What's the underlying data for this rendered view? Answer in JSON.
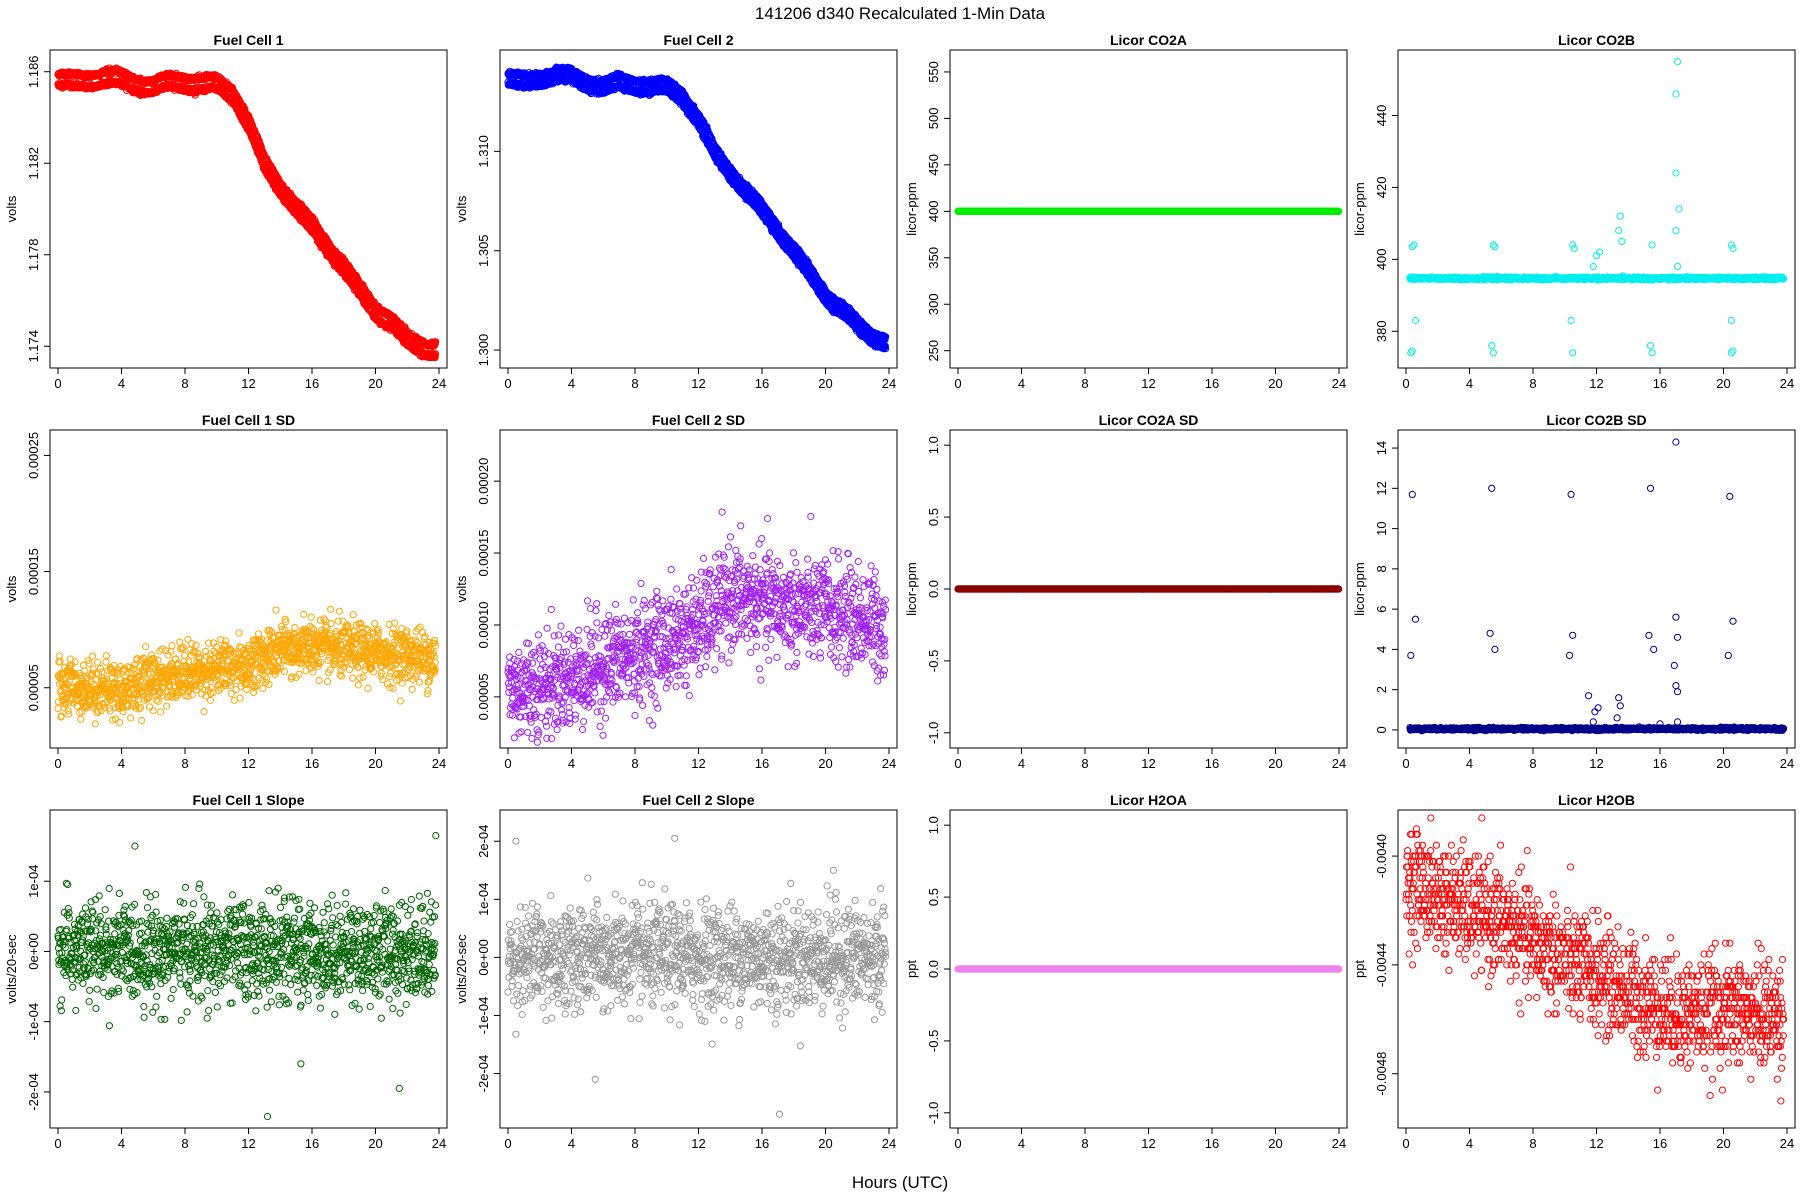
{
  "page": {
    "title": "141206   d340   Recalculated 1-Min Data",
    "xlabel": "Hours (UTC)"
  },
  "chart_data": [
    {
      "id": "fc1",
      "type": "scatter",
      "title": "Fuel Cell 1",
      "ylabel": "volts",
      "color": "#ff0000",
      "xlim": [
        0,
        24
      ],
      "ylim": [
        1.1734,
        1.1866
      ],
      "xticks": [
        "0",
        "4",
        "8",
        "12",
        "16",
        "20",
        "24"
      ],
      "yticks": [
        "1.174",
        "1.178",
        "1.182",
        "1.186"
      ],
      "ytick_values": [
        1.174,
        1.178,
        1.182,
        1.186
      ],
      "x": [
        0,
        1,
        2,
        3,
        4,
        5,
        6,
        7,
        8,
        9,
        10,
        11,
        12,
        13,
        14,
        15,
        16,
        17,
        18,
        19,
        20,
        21,
        22,
        23,
        24
      ],
      "y": [
        1.1859,
        1.1858,
        1.1859,
        1.186,
        1.1859,
        1.1857,
        1.1856,
        1.1858,
        1.1858,
        1.1857,
        1.1857,
        1.1853,
        1.184,
        1.1822,
        1.1812,
        1.1803,
        1.1795,
        1.1786,
        1.1777,
        1.1767,
        1.1758,
        1.1753,
        1.1745,
        1.1742,
        1.1741
      ],
      "y2_offset": -0.0005
    },
    {
      "id": "fc2",
      "type": "scatter",
      "title": "Fuel Cell 2",
      "ylabel": "volts",
      "color": "#0000ff",
      "xlim": [
        0,
        24
      ],
      "ylim": [
        1.2995,
        1.3147
      ],
      "xticks": [
        "0",
        "4",
        "8",
        "12",
        "16",
        "20",
        "24"
      ],
      "yticks": [
        "1.300",
        "1.305",
        "1.310"
      ],
      "ytick_values": [
        1.3,
        1.305,
        1.31
      ],
      "x": [
        0,
        1,
        2,
        3,
        4,
        5,
        6,
        7,
        8,
        9,
        10,
        11,
        12,
        13,
        14,
        15,
        16,
        17,
        18,
        19,
        20,
        21,
        22,
        23,
        24
      ],
      "y": [
        1.3139,
        1.3137,
        1.3139,
        1.3141,
        1.314,
        1.3137,
        1.3135,
        1.3137,
        1.3136,
        1.3135,
        1.3135,
        1.313,
        1.3118,
        1.3102,
        1.3092,
        1.3082,
        1.3073,
        1.3063,
        1.3052,
        1.3041,
        1.303,
        1.3023,
        1.3015,
        1.3009,
        1.3006
      ],
      "y2_offset": -0.0005
    },
    {
      "id": "co2a",
      "type": "scatter",
      "title": "Licor CO2A",
      "ylabel": "licor-ppm",
      "color": "#00ee00",
      "xlim": [
        0,
        24
      ],
      "ylim": [
        240,
        565
      ],
      "xticks": [
        "0",
        "4",
        "8",
        "12",
        "16",
        "20",
        "24"
      ],
      "yticks": [
        "250",
        "300",
        "350",
        "400",
        "450",
        "500",
        "550"
      ],
      "ytick_values": [
        250,
        300,
        350,
        400,
        450,
        500,
        550
      ],
      "constant": 400
    },
    {
      "id": "co2b",
      "type": "scatter",
      "title": "Licor CO2B",
      "ylabel": "licor-ppm",
      "color": "#00eeee",
      "xlim": [
        0,
        24
      ],
      "ylim": [
        372,
        456
      ],
      "xticks": [
        "0",
        "4",
        "8",
        "12",
        "16",
        "20",
        "24"
      ],
      "yticks": [
        "380",
        "400",
        "420",
        "440"
      ],
      "ytick_values": [
        380,
        400,
        420,
        440
      ],
      "baseline": 394.7,
      "outliers": [
        [
          0.4,
          403.5
        ],
        [
          0.5,
          404
        ],
        [
          0.3,
          374
        ],
        [
          0.4,
          374.5
        ],
        [
          0.6,
          383
        ],
        [
          5.5,
          404
        ],
        [
          5.6,
          403.5
        ],
        [
          5.4,
          376
        ],
        [
          5.5,
          374
        ],
        [
          10.5,
          404
        ],
        [
          10.6,
          403
        ],
        [
          10.4,
          383
        ],
        [
          10.5,
          374
        ],
        [
          11.8,
          398
        ],
        [
          12,
          401
        ],
        [
          12.2,
          402
        ],
        [
          13.4,
          408
        ],
        [
          13.5,
          412
        ],
        [
          13.6,
          405
        ],
        [
          15.5,
          404
        ],
        [
          15.4,
          376
        ],
        [
          15.5,
          374
        ],
        [
          17,
          446
        ],
        [
          17.1,
          455
        ],
        [
          17,
          424
        ],
        [
          17.2,
          414
        ],
        [
          17,
          408
        ],
        [
          17.1,
          398
        ],
        [
          20.5,
          404
        ],
        [
          20.6,
          403
        ],
        [
          20.5,
          383
        ],
        [
          20.5,
          374
        ],
        [
          20.6,
          374.5
        ]
      ]
    },
    {
      "id": "fc1sd",
      "type": "scatter",
      "title": "Fuel Cell 1 SD",
      "ylabel": "volts",
      "color": "#ffa500",
      "xlim": [
        0,
        24
      ],
      "ylim": [
        5e-06,
        0.000265
      ],
      "xticks": [
        "0",
        "4",
        "8",
        "12",
        "16",
        "20",
        "24"
      ],
      "yticks": [
        "0.00005",
        "0.00015",
        "0.00025"
      ],
      "ytick_values": [
        5e-05,
        0.00015,
        0.00025
      ],
      "x": [
        0,
        2,
        4,
        6,
        8,
        10,
        12,
        14,
        16,
        18,
        20,
        22,
        24
      ],
      "mean": [
        5.2e-05,
        5e-05,
        4.8e-05,
        5.8e-05,
        6.3e-05,
        6.6e-05,
        7e-05,
        8.2e-05,
        8.5e-05,
        8.2e-05,
        8e-05,
        7.8e-05,
        7.5e-05
      ],
      "spread": 1.2e-05
    },
    {
      "id": "fc2sd",
      "type": "scatter",
      "title": "Fuel Cell 2 SD",
      "ylabel": "volts",
      "color": "#a020f0",
      "xlim": [
        0,
        24
      ],
      "ylim": [
        2e-05,
        0.00023
      ],
      "xticks": [
        "0",
        "4",
        "8",
        "12",
        "16",
        "20",
        "24"
      ],
      "yticks": [
        "0.00005",
        "0.00010",
        "0.00015",
        "0.00020"
      ],
      "ytick_values": [
        5e-05,
        0.0001,
        0.00015,
        0.0002
      ],
      "x": [
        0,
        2,
        4,
        6,
        8,
        10,
        12,
        14,
        16,
        18,
        20,
        22,
        24
      ],
      "mean": [
        5.5e-05,
        5.8e-05,
        6.3e-05,
        7.2e-05,
        8e-05,
        8.8e-05,
        9.8e-05,
        0.00012,
        0.000115,
        0.000112,
        0.00011,
        0.000105,
        9.8e-05
      ],
      "spread": 1.8e-05
    },
    {
      "id": "co2asd",
      "type": "scatter",
      "title": "Licor CO2A SD",
      "ylabel": "licor-ppm",
      "color": "#8b0000",
      "xlim": [
        0,
        24
      ],
      "ylim": [
        -1.05,
        1.05
      ],
      "xticks": [
        "0",
        "4",
        "8",
        "12",
        "16",
        "20",
        "24"
      ],
      "yticks": [
        "-1.0",
        "-0.5",
        "0.0",
        "0.5",
        "1.0"
      ],
      "ytick_values": [
        -1.0,
        -0.5,
        0.0,
        0.5,
        1.0
      ],
      "constant": 0
    },
    {
      "id": "co2bsd",
      "type": "scatter",
      "title": "Licor CO2B SD",
      "ylabel": "licor-ppm",
      "color": "#00008b",
      "xlim": [
        0,
        24
      ],
      "ylim": [
        -0.5,
        14.5
      ],
      "xticks": [
        "0",
        "4",
        "8",
        "12",
        "16",
        "20",
        "24"
      ],
      "yticks": [
        "0",
        "2",
        "4",
        "6",
        "8",
        "10",
        "12",
        "14"
      ],
      "ytick_values": [
        0,
        2,
        4,
        6,
        8,
        10,
        12,
        14
      ],
      "baseline": 0.05,
      "outliers": [
        [
          0.4,
          11.7
        ],
        [
          0.6,
          5.5
        ],
        [
          0.3,
          3.7
        ],
        [
          5.4,
          12
        ],
        [
          5.3,
          4.8
        ],
        [
          5.6,
          4
        ],
        [
          10.4,
          11.7
        ],
        [
          10.5,
          4.7
        ],
        [
          10.3,
          3.7
        ],
        [
          11.5,
          1.7
        ],
        [
          11.9,
          0.9
        ],
        [
          12.1,
          1.1
        ],
        [
          11.8,
          0.4
        ],
        [
          13.4,
          1.6
        ],
        [
          13.5,
          1.2
        ],
        [
          13.3,
          0.6
        ],
        [
          15.4,
          12
        ],
        [
          15.3,
          4.7
        ],
        [
          15.6,
          4
        ],
        [
          17,
          14.3
        ],
        [
          17,
          5.6
        ],
        [
          17.1,
          4.6
        ],
        [
          16.9,
          3.2
        ],
        [
          17,
          2.2
        ],
        [
          17.1,
          1.9
        ],
        [
          20.4,
          11.6
        ],
        [
          20.6,
          5.4
        ],
        [
          20.3,
          3.7
        ],
        [
          16,
          0.3
        ],
        [
          17.1,
          0.4
        ]
      ]
    },
    {
      "id": "fc1slope",
      "type": "scatter",
      "title": "Fuel Cell 1 Slope",
      "ylabel": "volts/20-sec",
      "color": "#006400",
      "xlim": [
        0,
        24
      ],
      "ylim": [
        -0.00024,
        0.00019
      ],
      "xticks": [
        "0",
        "4",
        "8",
        "12",
        "16",
        "20",
        "24"
      ],
      "yticks": [
        "-2e-04",
        "-1e-04",
        "0e+00",
        "1e-04"
      ],
      "ytick_values": [
        -0.0002,
        -0.0001,
        0,
        0.0001
      ],
      "mean": 0.0,
      "spread": 3.5e-05,
      "outliers": [
        [
          23.8,
          0.000165
        ],
        [
          13.2,
          -0.000235
        ],
        [
          21.5,
          -0.000195
        ],
        [
          15.3,
          -0.00016
        ],
        [
          9.4,
          -9.5e-05
        ]
      ]
    },
    {
      "id": "fc2slope",
      "type": "scatter",
      "title": "Fuel Cell 2 Slope",
      "ylabel": "volts/20-sec",
      "color": "#999999",
      "xlim": [
        0,
        24
      ],
      "ylim": [
        -0.00028,
        0.00024
      ],
      "xticks": [
        "0",
        "4",
        "8",
        "12",
        "16",
        "20",
        "24"
      ],
      "yticks": [
        "-2e-04",
        "-1e-04",
        "0e+00",
        "1e-04",
        "2e-04"
      ],
      "ytick_values": [
        -0.0002,
        -0.0001,
        0,
        0.0001,
        0.0002
      ],
      "mean": 0.0,
      "spread": 4.5e-05,
      "outliers": [
        [
          0.5,
          0.0002
        ],
        [
          10.5,
          0.000205
        ],
        [
          17.1,
          -0.00027
        ],
        [
          5.5,
          -0.00021
        ],
        [
          20.5,
          0.00015
        ]
      ]
    },
    {
      "id": "h2oa",
      "type": "scatter",
      "title": "Licor H2OA",
      "ylabel": "ppt",
      "color": "#ee82ee",
      "xlim": [
        0,
        24
      ],
      "ylim": [
        -1.05,
        1.05
      ],
      "xticks": [
        "0",
        "4",
        "8",
        "12",
        "16",
        "20",
        "24"
      ],
      "yticks": [
        "-1.0",
        "-0.5",
        "0.0",
        "0.5",
        "1.0"
      ],
      "ytick_values": [
        -1.0,
        -0.5,
        0.0,
        0.5,
        1.0
      ],
      "constant": 0
    },
    {
      "id": "h2ob",
      "type": "scatter",
      "title": "Licor H2OB",
      "ylabel": "ppt",
      "color": "#ff0000",
      "xlim": [
        0,
        24
      ],
      "ylim": [
        -0.00497,
        -0.00386
      ],
      "xticks": [
        "0",
        "4",
        "8",
        "12",
        "16",
        "20",
        "24"
      ],
      "yticks": [
        "-0.0048",
        "-0.0044",
        "-0.0040"
      ],
      "ytick_values": [
        -0.0048,
        -0.0044,
        -0.004
      ],
      "x": [
        0,
        2,
        4,
        6,
        8,
        10,
        12,
        14,
        16,
        18,
        20,
        22,
        24
      ],
      "mean": [
        -0.00408,
        -0.00415,
        -0.0042,
        -0.00424,
        -0.00432,
        -0.00438,
        -0.00444,
        -0.0045,
        -0.00456,
        -0.00458,
        -0.00457,
        -0.00458,
        -0.00459
      ],
      "spread": 0.0001,
      "quantum": 2e-05
    }
  ]
}
